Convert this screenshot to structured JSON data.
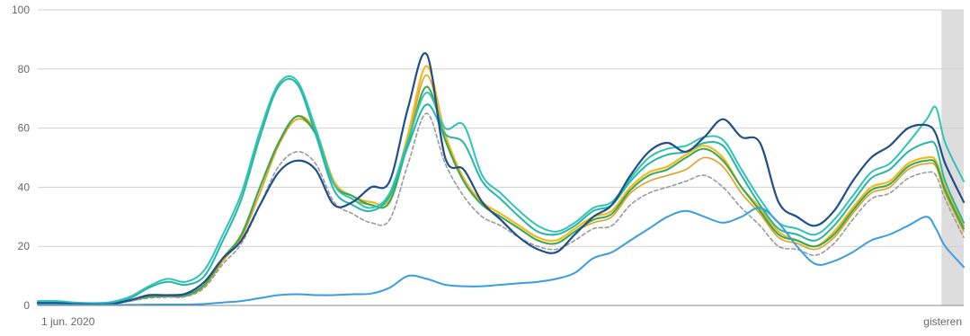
{
  "chart_data": {
    "type": "line",
    "title": "",
    "xlabel": "",
    "ylabel": "",
    "ylim": [
      0,
      100
    ],
    "yticks": [
      0,
      20,
      40,
      60,
      80,
      100
    ],
    "x_tick_labels": {
      "start": "1 jun. 2020",
      "end": "gisteren"
    },
    "x": [
      0,
      2,
      4,
      6,
      8,
      10,
      12,
      14,
      16,
      18,
      20,
      22,
      24,
      26,
      28,
      30,
      32,
      34,
      36,
      38,
      40,
      42,
      44,
      46,
      48,
      50,
      52,
      54,
      56,
      58,
      60,
      62,
      64,
      66,
      68,
      70,
      72,
      74,
      76,
      78,
      80,
      82,
      84,
      86,
      88,
      90,
      92,
      94,
      96,
      97,
      98,
      100
    ],
    "x_units": "percent of period from 1 jun. 2020 to gisteren",
    "shaded_region": {
      "from": 97.6,
      "to": 100,
      "color": "#dddddd"
    },
    "grid": true,
    "legend": "none",
    "series": [
      {
        "color": "#f5b81c",
        "dashed": false,
        "width": 2.2,
        "values": [
          1,
          1,
          0.6,
          0.5,
          0.6,
          1.8,
          3,
          3.2,
          3.5,
          7,
          16,
          24,
          40,
          55,
          64,
          59,
          42,
          37,
          35,
          36,
          58,
          81,
          58,
          43,
          35,
          31,
          27,
          23,
          22,
          26,
          30,
          32,
          40,
          45,
          47,
          51,
          54,
          50,
          40,
          33,
          25,
          22,
          20,
          25,
          33,
          40,
          42,
          48,
          50,
          49,
          40,
          27
        ]
      },
      {
        "color": "#e0a020",
        "dashed": false,
        "width": 1.6,
        "values": [
          1,
          1,
          0.6,
          0.5,
          0.6,
          1.5,
          2.8,
          3,
          3.2,
          6.5,
          15,
          23,
          38,
          54,
          63,
          58,
          41,
          36,
          34,
          35,
          56,
          78,
          56,
          42,
          34,
          30,
          26,
          22,
          21,
          25,
          28,
          30,
          38,
          42,
          44,
          46,
          50,
          47,
          38,
          31,
          23,
          21,
          19,
          23,
          31,
          38,
          40,
          46,
          48,
          47,
          38,
          25
        ]
      },
      {
        "color": "#34a853",
        "dashed": false,
        "width": 2.0,
        "values": [
          1,
          1,
          0.6,
          0.5,
          0.6,
          1.6,
          3,
          3.1,
          3.4,
          7,
          16,
          24,
          40,
          55,
          64,
          58,
          41,
          37,
          34,
          35,
          55,
          74,
          56,
          42,
          34,
          30,
          26,
          22,
          21,
          25,
          29,
          31,
          39,
          44,
          46,
          50,
          53,
          49,
          40,
          32,
          24,
          22,
          20,
          24,
          32,
          39,
          41,
          47,
          49,
          48,
          39,
          26
        ]
      },
      {
        "color": "#26b5a4",
        "dashed": false,
        "width": 2.0,
        "values": [
          1.3,
          1.3,
          0.8,
          0.6,
          1,
          2.5,
          6,
          8,
          7,
          10,
          22,
          36,
          57,
          74,
          75,
          58,
          39,
          34,
          32,
          37,
          54,
          68,
          58,
          55,
          42,
          36,
          30,
          25,
          24,
          27,
          32,
          34,
          42,
          48,
          51,
          52,
          55,
          54,
          44,
          34,
          26,
          24,
          22,
          27,
          35,
          43,
          46,
          52,
          55,
          54,
          42,
          28
        ]
      },
      {
        "color": "#2ec4b6",
        "dashed": false,
        "width": 2.0,
        "values": [
          1.5,
          1.5,
          1,
          0.8,
          1.2,
          3,
          6.5,
          9,
          8,
          12,
          24,
          38,
          59,
          75,
          76,
          60,
          41,
          36,
          33,
          38,
          56,
          72,
          60,
          61,
          44,
          38,
          32,
          27,
          25,
          28,
          33,
          35,
          43,
          50,
          53,
          54,
          57,
          56,
          46,
          36,
          28,
          26,
          24,
          29,
          37,
          45,
          48,
          55,
          63,
          67,
          55,
          42
        ]
      },
      {
        "color": "#999999",
        "dashed": true,
        "width": 1.6,
        "values": [
          0.8,
          0.8,
          0.5,
          0.4,
          0.5,
          1.5,
          2.5,
          2.8,
          3,
          6,
          14,
          21,
          34,
          47,
          52,
          48,
          35,
          31,
          28,
          29,
          48,
          65,
          48,
          37,
          30,
          27,
          23,
          20,
          19,
          22,
          26,
          27,
          34,
          38,
          40,
          42,
          44,
          40,
          33,
          27,
          20,
          19,
          17,
          21,
          29,
          36,
          38,
          43,
          45,
          44,
          36,
          23
        ]
      },
      {
        "color": "#1f4e89",
        "dashed": false,
        "width": 2.2,
        "values": [
          0.8,
          0.8,
          0.5,
          0.4,
          0.5,
          1.8,
          3.5,
          3.5,
          4,
          8,
          16,
          22,
          34,
          45,
          49,
          46,
          34,
          35,
          40,
          42,
          67,
          85,
          50,
          46,
          35,
          29,
          23,
          19,
          18,
          24,
          30,
          34,
          44,
          52,
          55,
          52,
          57,
          63,
          57,
          55,
          35,
          30,
          27,
          32,
          42,
          50,
          54,
          60,
          61,
          58,
          48,
          35
        ]
      },
      {
        "color": "#3a9ddf",
        "dashed": false,
        "width": 2.0,
        "values": [
          0.3,
          0.3,
          0.2,
          0.2,
          0.2,
          0.2,
          0.3,
          0.3,
          0.3,
          0.5,
          1,
          1.5,
          2.5,
          3.5,
          3.8,
          3.5,
          3.5,
          3.8,
          4,
          6,
          10,
          9,
          7,
          6.5,
          6.5,
          7,
          7.5,
          8,
          9,
          11,
          16,
          18,
          22,
          26,
          30,
          32,
          30,
          28,
          30,
          33,
          28,
          20,
          14,
          15,
          18,
          22,
          24,
          27,
          30,
          26,
          20,
          13
        ]
      }
    ]
  }
}
